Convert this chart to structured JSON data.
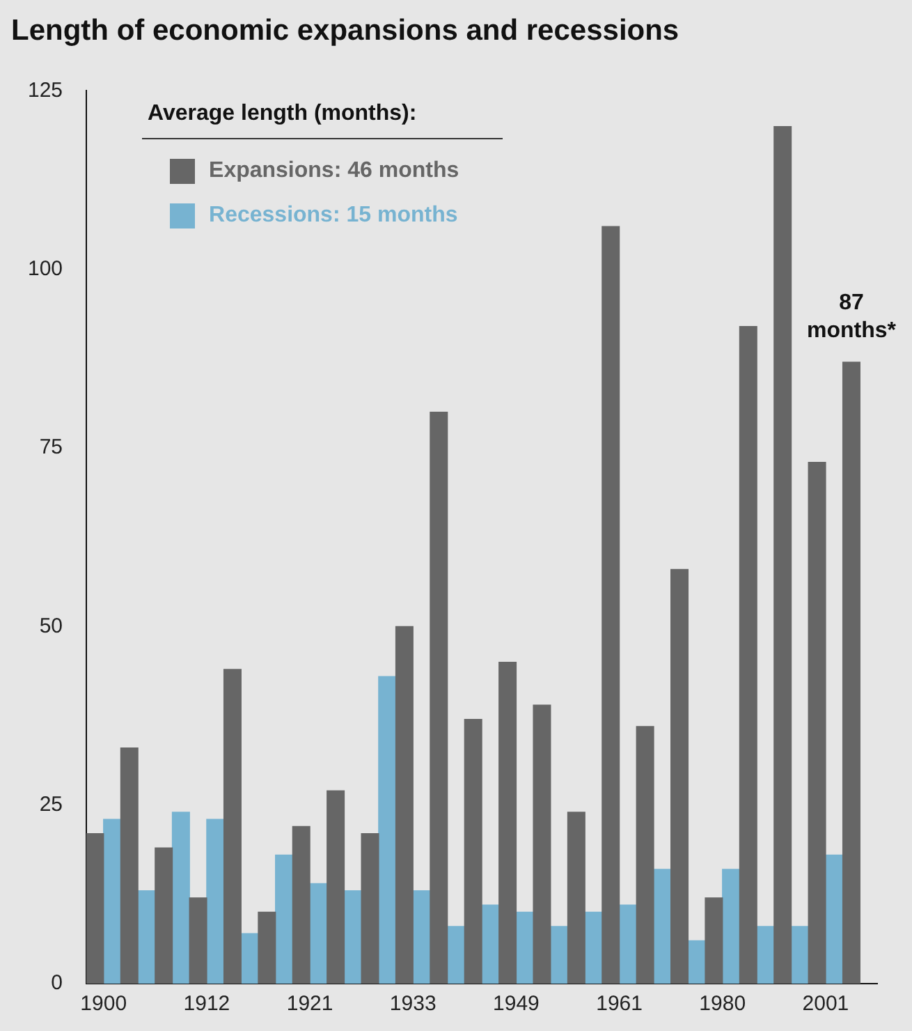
{
  "chart_data": {
    "type": "bar",
    "title": "Length of economic expansions and recessions",
    "categories": [
      "1900",
      null,
      null,
      "1912",
      null,
      null,
      "1921",
      null,
      null,
      "1933",
      null,
      null,
      "1949",
      null,
      null,
      "1961",
      null,
      null,
      "1980",
      null,
      null,
      "2001",
      null
    ],
    "series": [
      {
        "name": "Expansions: 46 months",
        "color": "#666666",
        "values": [
          21,
          33,
          19,
          12,
          44,
          10,
          22,
          27,
          21,
          50,
          80,
          37,
          45,
          39,
          24,
          106,
          36,
          58,
          12,
          92,
          120,
          73,
          87
        ]
      },
      {
        "name": "Recessions: 15 months",
        "color": "#77b3d1",
        "values": [
          23,
          13,
          24,
          23,
          7,
          18,
          14,
          13,
          43,
          13,
          8,
          11,
          10,
          8,
          10,
          11,
          16,
          6,
          16,
          8,
          8,
          18,
          null
        ]
      }
    ],
    "legend_title": "Average length (months):",
    "legend": "top left",
    "ylim": [
      0,
      125
    ],
    "yticks": [
      0,
      25,
      50,
      75,
      100,
      125
    ],
    "grid": false,
    "annotations": [
      {
        "text": "87 months*",
        "y": 87
      }
    ]
  }
}
